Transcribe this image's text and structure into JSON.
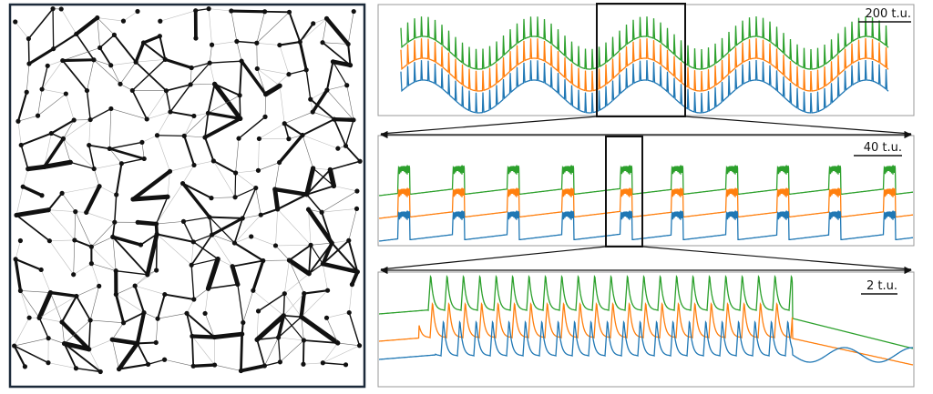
{
  "panels": [
    {
      "scale_label": "200 t.u."
    },
    {
      "scale_label": "40 t.u."
    },
    {
      "scale_label": "2 t.u."
    }
  ]
}
